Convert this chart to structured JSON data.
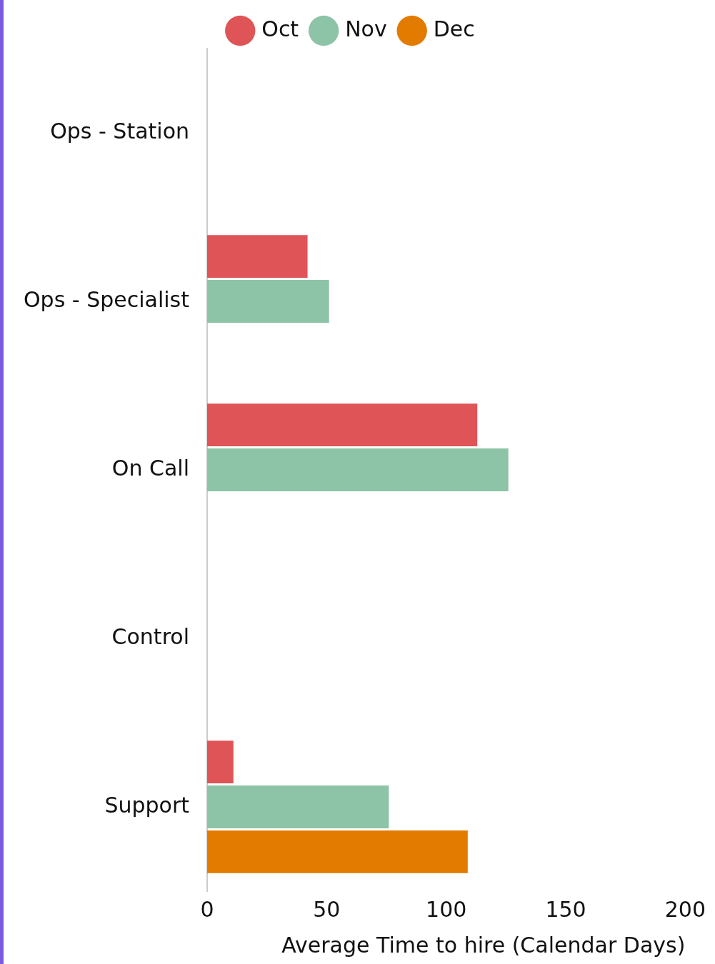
{
  "chart_data": {
    "type": "bar",
    "orientation": "horizontal",
    "xlabel": "Average Time to hire (Calendar Days)",
    "categories": [
      "Ops - Station",
      "Ops - Specialist",
      "On Call",
      "Control",
      "Support"
    ],
    "series": [
      {
        "name": "Oct",
        "color": "#de5457",
        "values": [
          null,
          42,
          113,
          null,
          11
        ]
      },
      {
        "name": "Nov",
        "color": "#8dc3a7",
        "values": [
          null,
          51,
          126,
          null,
          76
        ]
      },
      {
        "name": "Dec",
        "color": "#e37b00",
        "values": [
          null,
          null,
          null,
          null,
          109
        ]
      }
    ],
    "xlim": [
      0,
      200
    ],
    "xticks": [
      0,
      50,
      100,
      150,
      200
    ],
    "grid": false,
    "legend": "top"
  }
}
